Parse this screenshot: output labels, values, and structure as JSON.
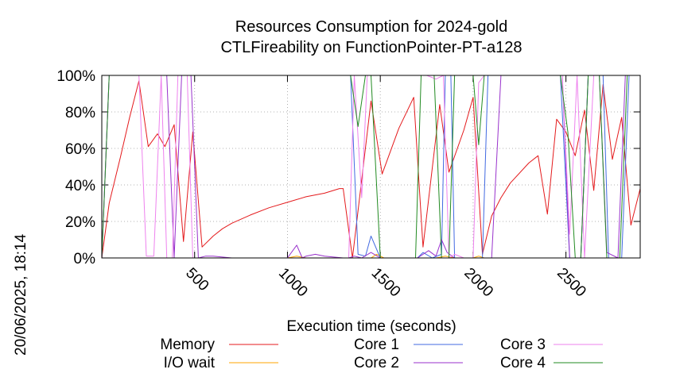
{
  "chart_data": {
    "type": "line",
    "title": "Resources Consumption for 2024-gold",
    "subtitle": "CTLFireability on FunctionPointer-PT-a128",
    "xlabel": "Execution time (seconds)",
    "ylabel": "",
    "side_label": "20/06/2025, 18:14",
    "xlim": [
      0,
      2900
    ],
    "ylim": [
      0,
      100
    ],
    "x_ticks": [
      500,
      1000,
      1500,
      2000,
      2500
    ],
    "y_ticks": [
      {
        "value": 0,
        "label": "0%"
      },
      {
        "value": 20,
        "label": "20%"
      },
      {
        "value": 40,
        "label": "40%"
      },
      {
        "value": 60,
        "label": "60%"
      },
      {
        "value": 80,
        "label": "80%"
      },
      {
        "value": 100,
        "label": "100%"
      }
    ],
    "grid": true,
    "legend_position": "bottom",
    "series": [
      {
        "name": "Memory",
        "color": "#e41a1c",
        "points": [
          [
            0,
            0
          ],
          [
            40,
            30
          ],
          [
            100,
            55
          ],
          [
            150,
            77
          ],
          [
            200,
            97
          ],
          [
            250,
            61
          ],
          [
            300,
            68
          ],
          [
            340,
            61
          ],
          [
            390,
            73
          ],
          [
            440,
            9
          ],
          [
            490,
            69
          ],
          [
            540,
            6
          ],
          [
            600,
            12
          ],
          [
            650,
            16
          ],
          [
            700,
            19
          ],
          [
            800,
            23.5
          ],
          [
            900,
            27.5
          ],
          [
            1000,
            30.5
          ],
          [
            1100,
            33.5
          ],
          [
            1200,
            35.5
          ],
          [
            1280,
            38
          ],
          [
            1300,
            38
          ],
          [
            1350,
            0
          ],
          [
            1450,
            86
          ],
          [
            1510,
            46
          ],
          [
            1600,
            71
          ],
          [
            1680,
            88
          ],
          [
            1730,
            6
          ],
          [
            1820,
            84
          ],
          [
            1870,
            47
          ],
          [
            1950,
            70
          ],
          [
            2000,
            88
          ],
          [
            2050,
            2
          ],
          [
            2100,
            23
          ],
          [
            2150,
            33
          ],
          [
            2200,
            41
          ],
          [
            2300,
            52
          ],
          [
            2350,
            56
          ],
          [
            2400,
            24
          ],
          [
            2450,
            76
          ],
          [
            2500,
            69
          ],
          [
            2550,
            56
          ],
          [
            2600,
            81
          ],
          [
            2650,
            37
          ],
          [
            2700,
            95
          ],
          [
            2750,
            54
          ],
          [
            2800,
            77
          ],
          [
            2850,
            18
          ],
          [
            2900,
            38
          ]
        ]
      },
      {
        "name": "I/O wait",
        "color": "#ffa500",
        "points": [
          [
            0,
            0
          ],
          [
            1000,
            0
          ],
          [
            1050,
            1
          ],
          [
            1100,
            0
          ],
          [
            1450,
            0
          ],
          [
            1480,
            2
          ],
          [
            1520,
            0
          ],
          [
            1800,
            0
          ],
          [
            1850,
            1
          ],
          [
            1900,
            0
          ],
          [
            2000,
            0
          ],
          [
            2030,
            1
          ],
          [
            2060,
            0
          ],
          [
            2900,
            0
          ]
        ]
      },
      {
        "name": "Core 1",
        "color": "#4169e1",
        "points": [
          [
            0,
            0
          ],
          [
            40,
            100
          ],
          [
            1340,
            100
          ],
          [
            1380,
            2
          ],
          [
            1420,
            1
          ],
          [
            1450,
            12
          ],
          [
            1500,
            0
          ],
          [
            1700,
            0
          ],
          [
            1730,
            3
          ],
          [
            1780,
            0
          ],
          [
            1830,
            2
          ],
          [
            1850,
            100
          ],
          [
            1880,
            100
          ],
          [
            1900,
            0
          ],
          [
            2050,
            0
          ],
          [
            2080,
            100
          ],
          [
            2470,
            100
          ],
          [
            2520,
            0
          ],
          [
            2580,
            0
          ],
          [
            2620,
            100
          ],
          [
            2700,
            100
          ],
          [
            2730,
            0
          ],
          [
            2800,
            0
          ],
          [
            2840,
            100
          ],
          [
            2900,
            100
          ]
        ]
      },
      {
        "name": "Core 2",
        "color": "#9932cc",
        "points": [
          [
            0,
            0
          ],
          [
            40,
            100
          ],
          [
            150,
            100
          ],
          [
            220,
            100
          ],
          [
            280,
            100
          ],
          [
            320,
            100
          ],
          [
            350,
            100
          ],
          [
            390,
            0
          ],
          [
            430,
            100
          ],
          [
            480,
            100
          ],
          [
            520,
            0
          ],
          [
            560,
            1
          ],
          [
            600,
            1
          ],
          [
            700,
            0
          ],
          [
            1000,
            0
          ],
          [
            1050,
            7
          ],
          [
            1080,
            0
          ],
          [
            1100,
            1
          ],
          [
            1150,
            2
          ],
          [
            1200,
            1
          ],
          [
            1300,
            0
          ],
          [
            1330,
            0
          ],
          [
            1360,
            1
          ],
          [
            1400,
            0
          ],
          [
            1450,
            3
          ],
          [
            1500,
            0
          ],
          [
            1700,
            0
          ],
          [
            1760,
            4
          ],
          [
            1800,
            1
          ],
          [
            1830,
            10
          ],
          [
            1860,
            3
          ],
          [
            1900,
            0
          ],
          [
            2100,
            0
          ],
          [
            2150,
            100
          ],
          [
            2450,
            100
          ],
          [
            2480,
            100
          ],
          [
            2520,
            0
          ],
          [
            2580,
            0
          ],
          [
            2620,
            100
          ],
          [
            2680,
            100
          ],
          [
            2720,
            3
          ],
          [
            2780,
            0
          ],
          [
            2820,
            100
          ],
          [
            2900,
            100
          ]
        ]
      },
      {
        "name": "Core 3",
        "color": "#ee82ee",
        "points": [
          [
            0,
            0
          ],
          [
            40,
            100
          ],
          [
            200,
            100
          ],
          [
            240,
            1
          ],
          [
            280,
            1
          ],
          [
            320,
            100
          ],
          [
            350,
            0
          ],
          [
            380,
            0
          ],
          [
            410,
            100
          ],
          [
            460,
            100
          ],
          [
            490,
            0
          ],
          [
            520,
            0
          ],
          [
            1330,
            0
          ],
          [
            1360,
            100
          ],
          [
            1400,
            33
          ],
          [
            1430,
            100
          ],
          [
            1750,
            100
          ],
          [
            1800,
            98
          ],
          [
            1840,
            100
          ],
          [
            1870,
            0
          ],
          [
            1900,
            2
          ],
          [
            1950,
            0
          ],
          [
            2000,
            0
          ],
          [
            2030,
            96
          ],
          [
            2060,
            100
          ],
          [
            2480,
            100
          ],
          [
            2520,
            13
          ],
          [
            2560,
            100
          ],
          [
            2600,
            0
          ],
          [
            2650,
            100
          ],
          [
            2900,
            100
          ]
        ]
      },
      {
        "name": "Core 4",
        "color": "#228b22",
        "points": [
          [
            0,
            0
          ],
          [
            40,
            100
          ],
          [
            1340,
            100
          ],
          [
            1380,
            72
          ],
          [
            1420,
            100
          ],
          [
            1450,
            100
          ],
          [
            1500,
            0
          ],
          [
            1690,
            0
          ],
          [
            1720,
            100
          ],
          [
            1790,
            100
          ],
          [
            1830,
            0
          ],
          [
            1870,
            0
          ],
          [
            1900,
            100
          ],
          [
            2000,
            100
          ],
          [
            2030,
            62
          ],
          [
            2060,
            100
          ],
          [
            2470,
            100
          ],
          [
            2510,
            69
          ],
          [
            2550,
            0
          ],
          [
            2580,
            0
          ],
          [
            2620,
            100
          ],
          [
            2680,
            100
          ],
          [
            2720,
            0
          ],
          [
            2790,
            0
          ],
          [
            2830,
            100
          ],
          [
            2900,
            100
          ]
        ]
      }
    ]
  }
}
